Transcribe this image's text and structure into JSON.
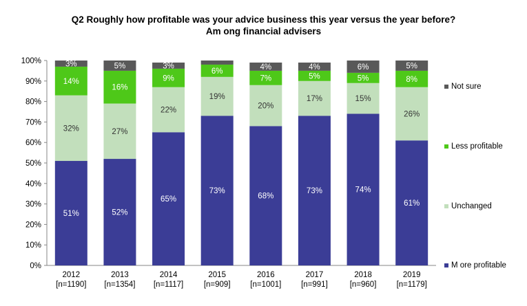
{
  "chart_data": {
    "type": "bar",
    "stacked": true,
    "percent_stacked": true,
    "title": "Q2 Roughly how profitable was your advice business this year versus the year before?",
    "subtitle": "Am ong financial advisers",
    "categories": [
      "2012",
      "2013",
      "2014",
      "2015",
      "2016",
      "2017",
      "2018",
      "2019"
    ],
    "category_sublabels": [
      "[n=1190]",
      "[n=1354]",
      "[n=1117]",
      "[n=909]",
      "[n=1001]",
      "[n=991]",
      "[n=960]",
      "[n=1179]"
    ],
    "ylim": [
      0,
      100
    ],
    "yticks": [
      "0%",
      "10%",
      "20%",
      "30%",
      "40%",
      "50%",
      "60%",
      "70%",
      "80%",
      "90%",
      "100%"
    ],
    "legend_position": "right",
    "grid": false,
    "series": [
      {
        "name": "M ore profitable",
        "color": "#3b3d96",
        "label_color": "#ffffff",
        "values": [
          51,
          52,
          65,
          73,
          68,
          73,
          74,
          61
        ],
        "labels": [
          "51%",
          "52%",
          "65%",
          "73%",
          "68%",
          "73%",
          "74%",
          "61%"
        ]
      },
      {
        "name": "Unchanged",
        "color": "#c2dfbc",
        "label_color": "#333333",
        "values": [
          32,
          27,
          22,
          19,
          20,
          17,
          15,
          26
        ],
        "labels": [
          "32%",
          "27%",
          "22%",
          "19%",
          "20%",
          "17%",
          "15%",
          "26%"
        ]
      },
      {
        "name": "Less profitable",
        "color": "#4ec819",
        "label_color": "#ffffff",
        "values": [
          14,
          16,
          9,
          6,
          7,
          5,
          5,
          8
        ],
        "labels": [
          "14%",
          "16%",
          "9%",
          "6%",
          "7%",
          "5%",
          "5%",
          "8%"
        ]
      },
      {
        "name": "Not sure",
        "color": "#595959",
        "label_color": "#ffffff",
        "values": [
          3,
          5,
          3,
          2,
          4,
          4,
          6,
          5
        ],
        "labels": [
          "3%",
          "5%",
          "3%",
          "",
          "4%",
          "4%",
          "6%",
          "5%"
        ]
      }
    ]
  }
}
